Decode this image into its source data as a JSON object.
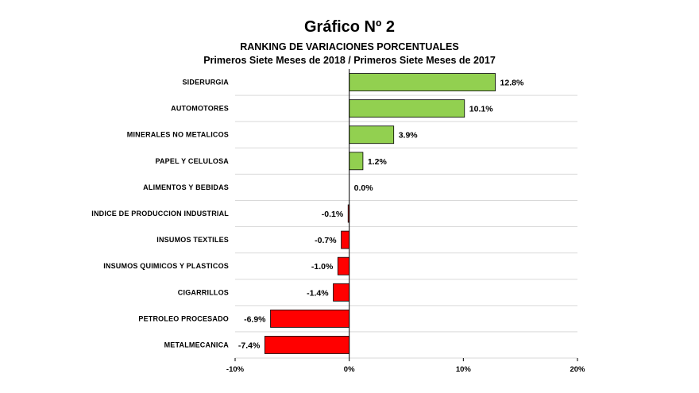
{
  "colors": {
    "positive": "#92d050",
    "negative": "#ff0000",
    "zero": "#c0a000",
    "gridline": "#d9d9d9",
    "axis": "#000000"
  },
  "chart_data": {
    "type": "bar",
    "orientation": "horizontal",
    "title": "Gráfico Nº 2",
    "subtitle": "RANKING DE VARIACIONES PORCENTUALES",
    "subtitle2": "Primeros Siete Meses de 2018 / Primeros Siete Meses de 2017",
    "xlabel": "",
    "ylabel": "",
    "xlim": [
      -10,
      20
    ],
    "grid": true,
    "legend": "none",
    "categories": [
      "SIDERURGIA",
      "AUTOMOTORES",
      "MINERALES NO METALICOS",
      "PAPEL Y CELULOSA",
      "ALIMENTOS Y BEBIDAS",
      "INDICE DE PRODUCCION INDUSTRIAL",
      "INSUMOS TEXTILES",
      "INSUMOS QUIMICOS Y PLASTICOS",
      "CIGARRILLOS",
      "PETROLEO PROCESADO",
      "METALMECANICA"
    ],
    "values": [
      12.8,
      10.1,
      3.9,
      1.2,
      0.0,
      -0.1,
      -0.7,
      -1.0,
      -1.4,
      -6.9,
      -7.4
    ],
    "data_labels": [
      "12.8%",
      "10.1%",
      "3.9%",
      "1.2%",
      "0.0%",
      "-0.1%",
      "-0.7%",
      "-1.0%",
      "-1.4%",
      "-6.9%",
      "-7.4%"
    ],
    "x_ticks": [
      {
        "value": -10,
        "label": "-10%"
      },
      {
        "value": 0,
        "label": "0%"
      },
      {
        "value": 10,
        "label": "10%"
      },
      {
        "value": 20,
        "label": "20%"
      }
    ]
  }
}
